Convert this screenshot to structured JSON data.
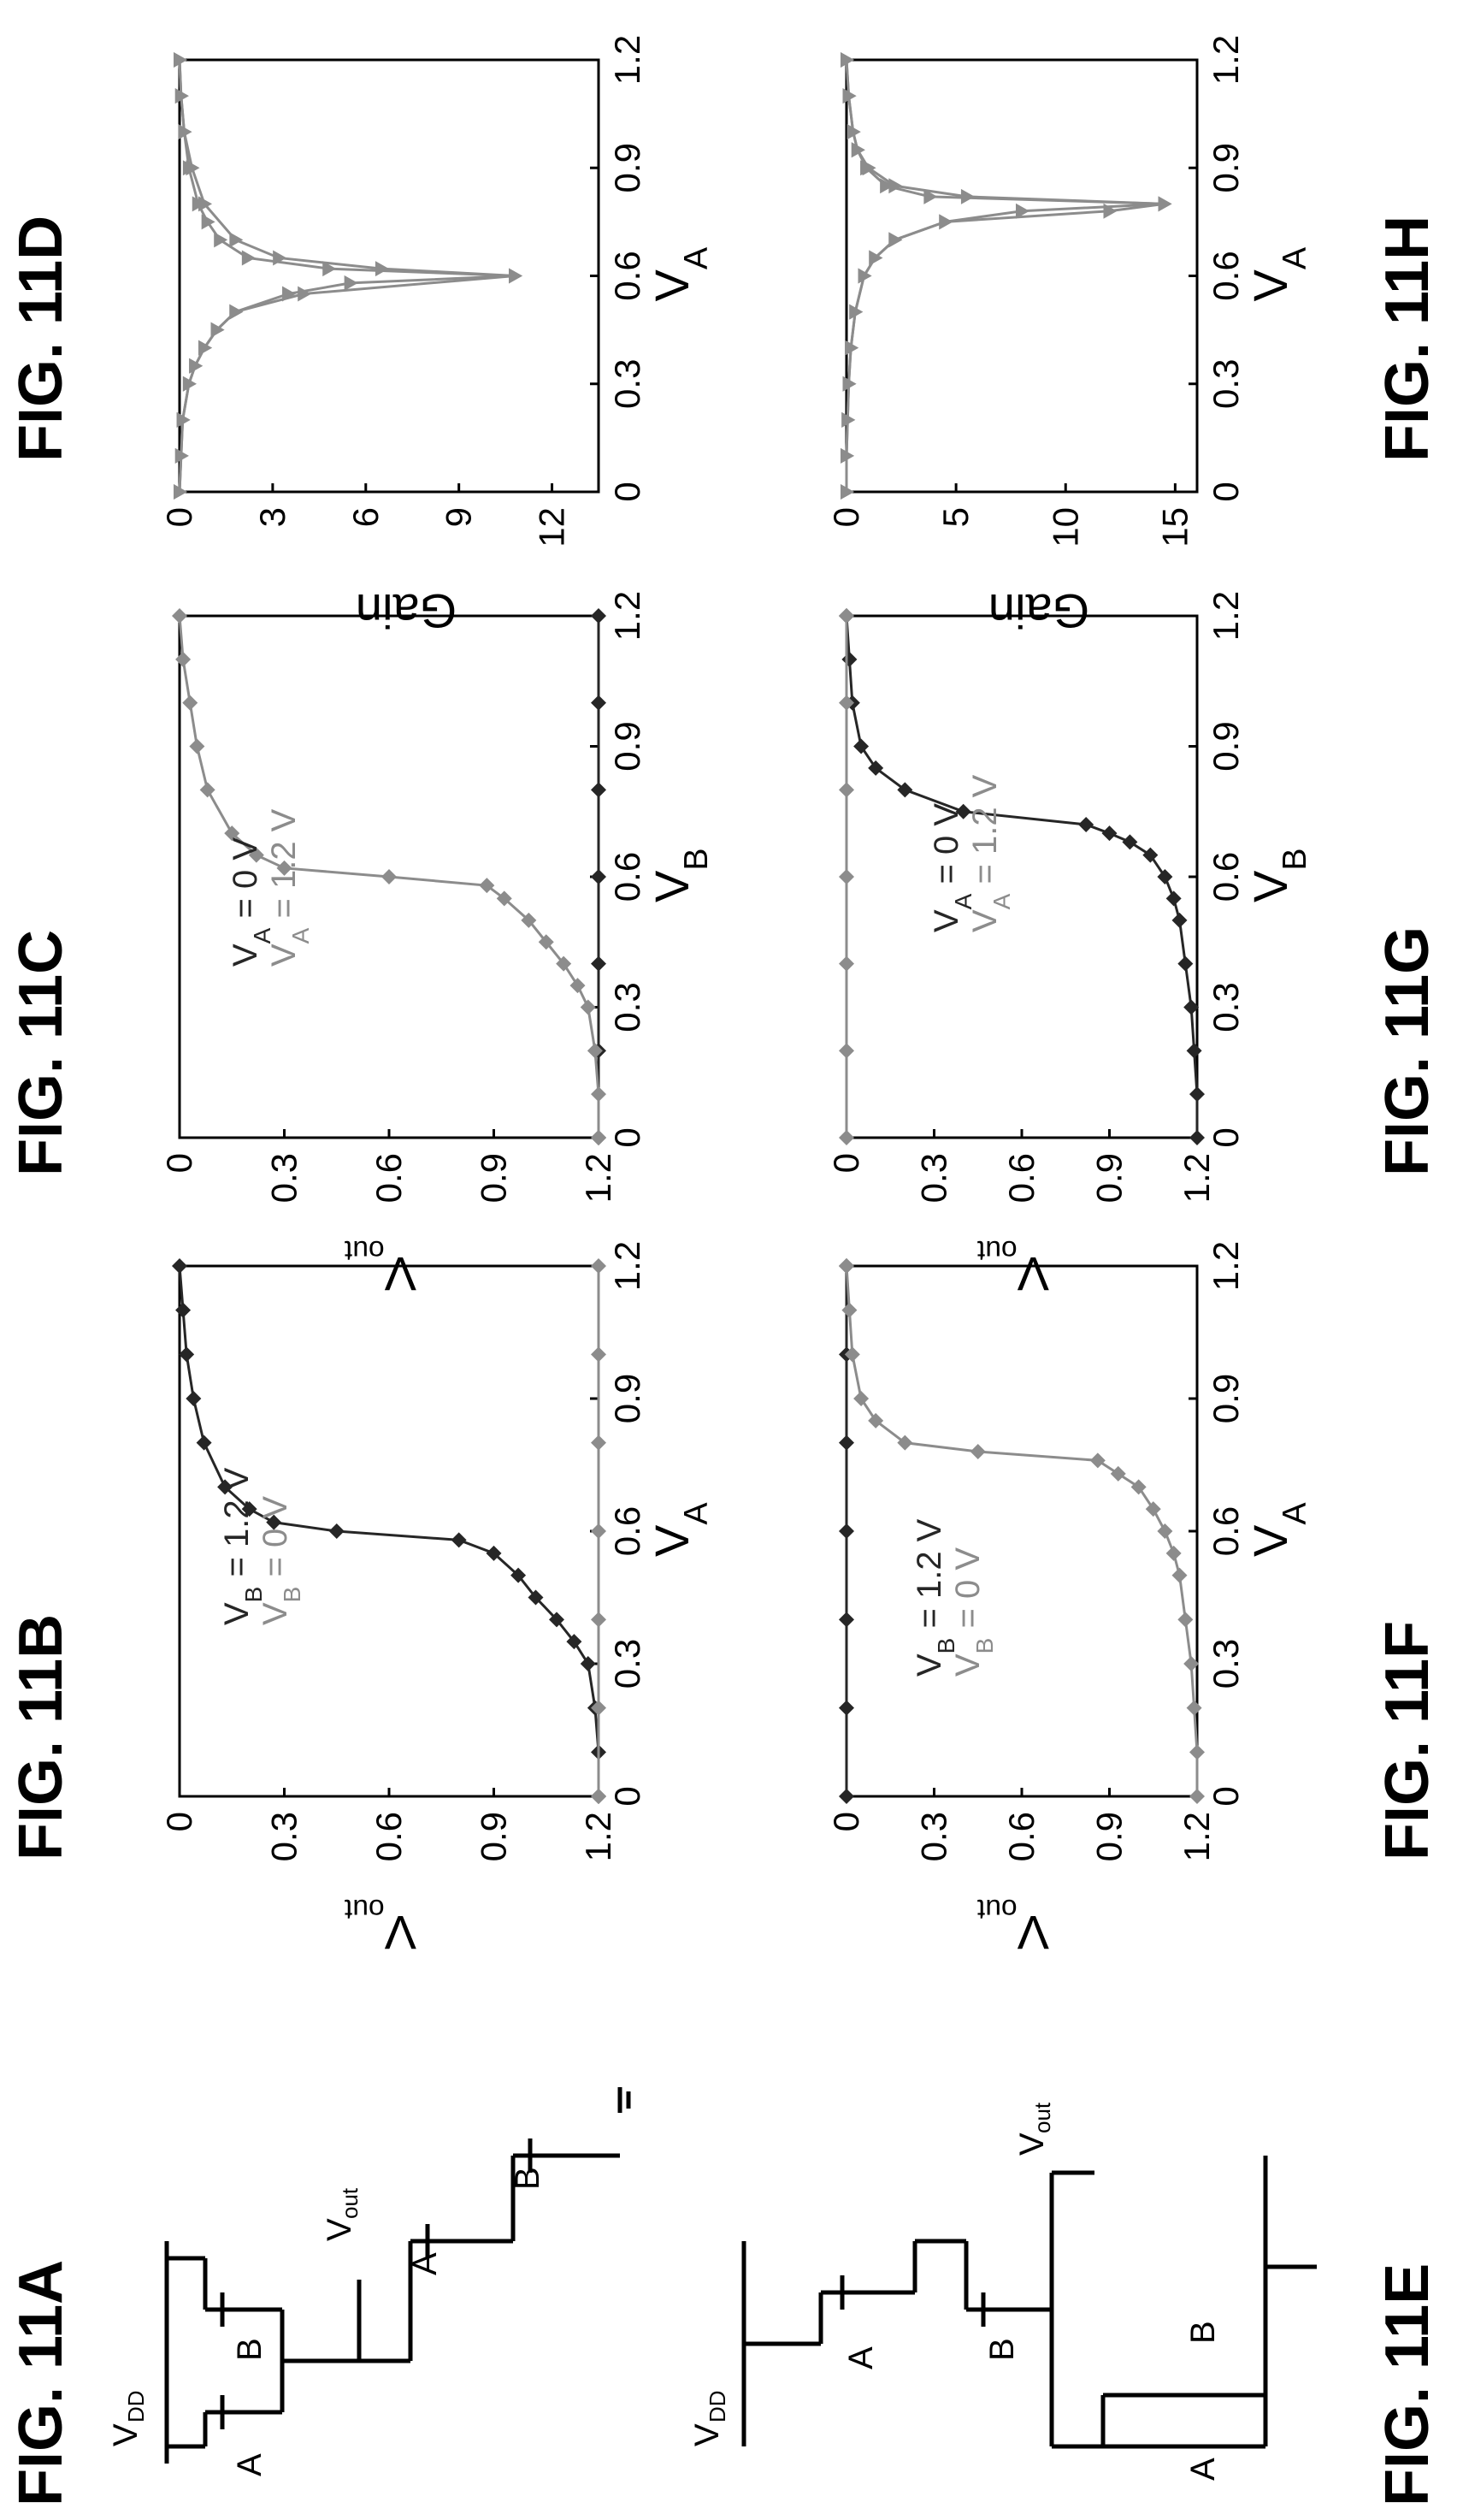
{
  "figures": [
    {
      "id": "11A",
      "title": "FIG. 11A"
    },
    {
      "id": "11B",
      "title": "FIG. 11B"
    },
    {
      "id": "11C",
      "title": "FIG. 11C"
    },
    {
      "id": "11D",
      "title": "FIG. 11D"
    },
    {
      "id": "11E",
      "title": "FIG. 11E"
    },
    {
      "id": "11F",
      "title": "FIG. 11F"
    },
    {
      "id": "11G",
      "title": "FIG. 11G"
    },
    {
      "id": "11H",
      "title": "FIG. 11H"
    }
  ],
  "circuits": {
    "vdd": "V",
    "vdd_sub": "DD",
    "vout": "V",
    "vout_sub": "out",
    "a": "A",
    "b": "B"
  },
  "chart_data": [
    {
      "id": "11B",
      "type": "line",
      "xlabel": "V",
      "xlabel_sub": "A",
      "ylabel": "V",
      "ylabel_sub": "out",
      "xlim": [
        0,
        1.2
      ],
      "ylim": [
        0,
        1.2
      ],
      "xticks": [
        "0",
        "0.3",
        "0.6",
        "0.9",
        "1.2"
      ],
      "yticks": [
        "0",
        "0.3",
        "0.6",
        "0.9",
        "1.2"
      ],
      "series": [
        {
          "name": "V = 1.2 V",
          "name_prefix": "V",
          "name_sub": "B",
          "name_suffix": " = 1.2 V",
          "color": "#262626",
          "marker": "diamond",
          "x": [
            0,
            0.1,
            0.2,
            0.3,
            0.35,
            0.4,
            0.45,
            0.5,
            0.55,
            0.58,
            0.6,
            0.62,
            0.65,
            0.7,
            0.8,
            0.9,
            1.0,
            1.1,
            1.2
          ],
          "y": [
            1.2,
            1.2,
            1.19,
            1.17,
            1.13,
            1.08,
            1.02,
            0.97,
            0.9,
            0.8,
            0.45,
            0.27,
            0.2,
            0.13,
            0.07,
            0.04,
            0.02,
            0.01,
            0
          ]
        },
        {
          "name": "V = 0 V",
          "name_prefix": "V",
          "name_sub": "B",
          "name_suffix": " = 0 V",
          "color": "#8c8c8c",
          "marker": "diamond",
          "x": [
            0,
            0.2,
            0.4,
            0.6,
            0.8,
            1.0,
            1.2
          ],
          "y": [
            1.2,
            1.2,
            1.2,
            1.2,
            1.2,
            1.2,
            1.2
          ]
        }
      ]
    },
    {
      "id": "11C",
      "type": "line",
      "xlabel": "V",
      "xlabel_sub": "B",
      "ylabel": "V",
      "ylabel_sub": "out",
      "xlim": [
        0,
        1.2
      ],
      "ylim": [
        0,
        1.2
      ],
      "xticks": [
        "0",
        "0.3",
        "0.6",
        "0.9",
        "1.2"
      ],
      "yticks": [
        "0",
        "0.3",
        "0.6",
        "0.9",
        "1.2"
      ],
      "series": [
        {
          "name": "V = 0 V",
          "name_prefix": "V",
          "name_sub": "A",
          "name_suffix": " = 0 V",
          "color": "#262626",
          "marker": "diamond",
          "x": [
            0,
            0.2,
            0.4,
            0.6,
            0.8,
            1.0,
            1.2
          ],
          "y": [
            1.2,
            1.2,
            1.2,
            1.2,
            1.2,
            1.2,
            1.2
          ]
        },
        {
          "name": "V = 1.2 V",
          "name_prefix": "V",
          "name_sub": "A",
          "name_suffix": " = 1.2 V",
          "color": "#8c8c8c",
          "marker": "diamond",
          "x": [
            0,
            0.1,
            0.2,
            0.3,
            0.35,
            0.4,
            0.45,
            0.5,
            0.55,
            0.58,
            0.6,
            0.62,
            0.65,
            0.7,
            0.8,
            0.9,
            1.0,
            1.1,
            1.2
          ],
          "y": [
            1.2,
            1.2,
            1.19,
            1.17,
            1.14,
            1.1,
            1.05,
            1.0,
            0.93,
            0.88,
            0.6,
            0.3,
            0.22,
            0.15,
            0.08,
            0.05,
            0.03,
            0.01,
            0
          ]
        }
      ]
    },
    {
      "id": "11D",
      "type": "line",
      "xlabel": "V",
      "xlabel_sub": "A",
      "ylabel": "Gain",
      "xlim": [
        0,
        1.2
      ],
      "ylim": [
        0,
        13.5
      ],
      "xticks": [
        "0",
        "0.3",
        "0.6",
        "0.9",
        "1.2"
      ],
      "yticks": [
        "0",
        "3",
        "6",
        "9",
        "12"
      ],
      "series": [
        {
          "name": "",
          "color": "#8c8c8c",
          "marker": "triangle",
          "x": [
            0,
            0.1,
            0.2,
            0.3,
            0.35,
            0.4,
            0.45,
            0.5,
            0.55,
            0.6,
            0.62,
            0.65,
            0.7,
            0.75,
            0.8,
            0.9,
            1.0,
            1.1,
            1.2
          ],
          "y": [
            0,
            0.05,
            0.1,
            0.3,
            0.5,
            0.8,
            1.2,
            1.8,
            4.0,
            10.8,
            4.8,
            2.2,
            1.3,
            0.9,
            0.6,
            0.3,
            0.15,
            0.05,
            0
          ]
        },
        {
          "name": "",
          "color": "#8c8c8c",
          "marker": "triangle",
          "x": [
            0,
            0.1,
            0.2,
            0.3,
            0.35,
            0.4,
            0.45,
            0.5,
            0.55,
            0.58,
            0.6,
            0.62,
            0.65,
            0.7,
            0.8,
            0.9,
            1.0,
            1.1,
            1.2
          ],
          "y": [
            0,
            0.05,
            0.1,
            0.3,
            0.5,
            0.8,
            1.2,
            1.8,
            3.5,
            5.5,
            10.8,
            6.5,
            3.2,
            1.8,
            0.8,
            0.4,
            0.15,
            0.05,
            0
          ]
        }
      ]
    },
    {
      "id": "11F",
      "type": "line",
      "xlabel": "V",
      "xlabel_sub": "A",
      "ylabel": "V",
      "ylabel_sub": "out",
      "xlim": [
        0,
        1.2
      ],
      "ylim": [
        0,
        1.2
      ],
      "xticks": [
        "0",
        "0.3",
        "0.6",
        "0.9",
        "1.2"
      ],
      "yticks": [
        "0",
        "0.3",
        "0.6",
        "0.9",
        "1.2"
      ],
      "series": [
        {
          "name": "V = 1.2 V",
          "name_prefix": "V",
          "name_sub": "B",
          "name_suffix": " = 1.2 V",
          "color": "#262626",
          "marker": "diamond",
          "x": [
            0,
            0.2,
            0.4,
            0.6,
            0.8,
            1.0,
            1.2
          ],
          "y": [
            0,
            0,
            0,
            0,
            0,
            0,
            0
          ]
        },
        {
          "name": "V = 0 V",
          "name_prefix": "V",
          "name_sub": "B",
          "name_suffix": " = 0 V",
          "color": "#8c8c8c",
          "marker": "diamond",
          "x": [
            0,
            0.1,
            0.2,
            0.3,
            0.4,
            0.5,
            0.55,
            0.6,
            0.65,
            0.7,
            0.73,
            0.76,
            0.78,
            0.8,
            0.85,
            0.9,
            1.0,
            1.1,
            1.2
          ],
          "y": [
            1.2,
            1.2,
            1.19,
            1.18,
            1.16,
            1.14,
            1.12,
            1.09,
            1.05,
            1.0,
            0.93,
            0.86,
            0.45,
            0.2,
            0.1,
            0.05,
            0.02,
            0.01,
            0
          ]
        }
      ]
    },
    {
      "id": "11G",
      "type": "line",
      "xlabel": "V",
      "xlabel_sub": "B",
      "ylabel": "V",
      "ylabel_sub": "out",
      "xlim": [
        0,
        1.2
      ],
      "ylim": [
        0,
        1.2
      ],
      "xticks": [
        "0",
        "0.3",
        "0.6",
        "0.9",
        "1.2"
      ],
      "yticks": [
        "0",
        "0.3",
        "0.6",
        "0.9",
        "1.2"
      ],
      "series": [
        {
          "name": "V = 0 V",
          "name_prefix": "V",
          "name_sub": "A",
          "name_suffix": " = 0 V",
          "color": "#262626",
          "marker": "diamond",
          "x": [
            0,
            0.1,
            0.2,
            0.3,
            0.4,
            0.5,
            0.55,
            0.6,
            0.65,
            0.68,
            0.7,
            0.72,
            0.75,
            0.8,
            0.85,
            0.9,
            1.0,
            1.1,
            1.2
          ],
          "y": [
            1.2,
            1.2,
            1.19,
            1.18,
            1.16,
            1.14,
            1.12,
            1.09,
            1.04,
            0.97,
            0.9,
            0.82,
            0.4,
            0.2,
            0.1,
            0.05,
            0.02,
            0.01,
            0
          ]
        },
        {
          "name": "V = 1.2 V",
          "name_prefix": "V",
          "name_sub": "A",
          "name_suffix": " = 1.2 V",
          "color": "#8c8c8c",
          "marker": "diamond",
          "x": [
            0,
            0.2,
            0.4,
            0.6,
            0.8,
            1.0,
            1.2
          ],
          "y": [
            0,
            0,
            0,
            0,
            0,
            0,
            0
          ]
        }
      ]
    },
    {
      "id": "11H",
      "type": "line",
      "xlabel": "V",
      "xlabel_sub": "A",
      "ylabel": "Gain",
      "xlim": [
        0,
        1.2
      ],
      "ylim": [
        0,
        16
      ],
      "xticks": [
        "0",
        "0.3",
        "0.6",
        "0.9",
        "1.2"
      ],
      "yticks": [
        "0",
        "5",
        "10",
        "15"
      ],
      "series": [
        {
          "name": "",
          "color": "#8c8c8c",
          "marker": "triangle",
          "x": [
            0,
            0.1,
            0.2,
            0.3,
            0.4,
            0.5,
            0.6,
            0.65,
            0.7,
            0.75,
            0.78,
            0.8,
            0.82,
            0.85,
            0.9,
            0.95,
            1.0,
            1.1,
            1.2
          ],
          "y": [
            0,
            0,
            0.05,
            0.1,
            0.2,
            0.4,
            0.8,
            1.3,
            2.2,
            4.5,
            8.0,
            14.5,
            3.8,
            1.8,
            0.9,
            0.5,
            0.3,
            0.1,
            0
          ]
        },
        {
          "name": "",
          "color": "#8c8c8c",
          "marker": "triangle",
          "x": [
            0,
            0.1,
            0.2,
            0.3,
            0.4,
            0.5,
            0.6,
            0.65,
            0.7,
            0.75,
            0.78,
            0.8,
            0.82,
            0.85,
            0.9,
            0.95,
            1.0,
            1.1,
            1.2
          ],
          "y": [
            0,
            0,
            0.05,
            0.1,
            0.2,
            0.4,
            0.8,
            1.3,
            2.2,
            4.5,
            12.0,
            14.5,
            5.5,
            2.2,
            1.0,
            0.5,
            0.3,
            0.1,
            0
          ]
        }
      ]
    }
  ]
}
